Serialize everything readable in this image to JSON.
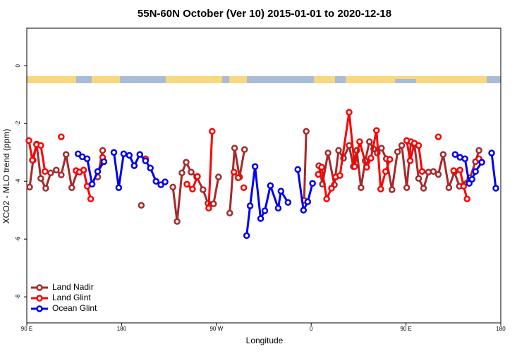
{
  "chart_data": {
    "type": "line",
    "title": "55N-60N October (Ver 10)   2015-01-01 to 2020-12-18",
    "x_label": "Longitude",
    "y_label": "XCO2 - MLO trend (ppm)",
    "xlim": [
      90,
      540
    ],
    "xticks": [
      {
        "value": 90,
        "label": "90 E"
      },
      180,
      {
        "value": 270,
        "label": "90 W"
      },
      {
        "value": 360,
        "label": "0"
      },
      {
        "value": 450,
        "label": "90 E"
      },
      {
        "value": 540,
        "label": "180"
      }
    ],
    "ylim": [
      -8.9,
      1.3
    ],
    "yticks": [
      0,
      -2,
      -4,
      -6,
      -8
    ],
    "legend": "bottom-left",
    "series": [
      {
        "name": "Land Nadir",
        "color": "#a52a2a",
        "x": [
          92.7,
          96.0,
          99.3,
          103.3,
          108.0,
          112.7,
          118.0,
          122.7,
          127.3,
          132.7,
          138.0,
          null,
          157.3,
          162.0,
          null,
          198.7,
          null,
          228.7,
          232.7,
          237.3,
          241.3,
          246.0,
          251.3,
          257.3,
          262.0,
          267.3,
          272.0,
          null,
          282.7,
          287.3,
          292.0,
          296.7,
          null,
          353.3,
          355.3,
          null,
          367.3,
          370.7,
          376.0,
          382.0,
          386.0,
          390.7,
          396.0,
          400.0,
          403.3,
          407.3,
          411.3,
          415.3,
          419.3,
          422.7,
          426.7,
          431.3,
          436.7,
          442.0,
          446.0,
          450.7,
          454.7,
          458.0,
          462.0,
          466.7,
          471.3,
          476.0,
          480.7,
          485.3,
          490.7,
          496.0,
          500.7,
          510.7,
          516.0,
          519.3
        ],
        "values": [
          -4.2,
          -3.27,
          -2.71,
          -3.9,
          -4.24,
          -3.71,
          -3.61,
          -3.78,
          -3.07,
          -4.22,
          -3.66,
          null,
          -3.85,
          -2.93,
          null,
          -4.83,
          null,
          -4.2,
          -5.39,
          -3.71,
          -3.34,
          -3.68,
          -3.85,
          -4.29,
          -4.76,
          -4.78,
          -3.85,
          null,
          -5.1,
          -2.85,
          -3.85,
          -2.9,
          null,
          -4.66,
          -2.27,
          null,
          -3.46,
          -4.1,
          -3.02,
          -4.12,
          -2.93,
          -3.2,
          -2.76,
          -3.49,
          -2.93,
          -4.22,
          -3.29,
          -2.63,
          -2.88,
          -3.02,
          -2.85,
          -3.22,
          -4.29,
          -2.98,
          -2.76,
          -4.22,
          -2.63,
          -2.73,
          -3.9,
          -4.24,
          -3.68,
          -3.66,
          -3.76,
          -3.07,
          -4.22,
          -3.68,
          -4.17,
          -3.88,
          -3.32,
          -2.93
        ]
      },
      {
        "name": "Land Glint",
        "color": "#ff0000",
        "x": [
          92.0,
          95.3,
          99.3,
          103.3,
          107.3,
          null,
          122.7,
          null,
          136.7,
          140.0,
          144.0,
          147.3,
          150.7,
          null,
          162.0,
          null,
          202.7,
          null,
          242.0,
          247.3,
          252.0,
          null,
          262.7,
          266.0,
          null,
          286.7,
          290.7,
          null,
          296.0,
          null,
          366.7,
          370.0,
          374.7,
          379.3,
          383.3,
          387.3,
          396.0,
          401.3,
          406.0,
          412.7,
          416.7,
          422.0,
          426.0,
          430.7,
          434.7,
          null,
          450.7,
          454.0,
          458.0,
          462.0,
          465.3,
          null,
          480.7,
          null,
          495.3,
          501.3,
          504.7,
          508.0,
          null,
          519.3
        ],
        "values": [
          -2.59,
          -3.27,
          -2.73,
          -2.76,
          -3.66,
          null,
          -2.46,
          null,
          -3.63,
          -3.68,
          -3.61,
          -4.17,
          -4.61,
          null,
          -3.17,
          null,
          -3.22,
          null,
          -4.1,
          -4.27,
          -3.83,
          null,
          -4.93,
          -2.27,
          null,
          -3.68,
          -3.88,
          null,
          -4.22,
          null,
          -3.76,
          -3.51,
          -4.61,
          -4.24,
          -3.85,
          -3.8,
          -1.61,
          -3.49,
          -2.63,
          -3.51,
          -3.2,
          -2.24,
          -4.27,
          -3.66,
          -3.24,
          null,
          -2.59,
          -3.29,
          -2.68,
          -2.76,
          -3.66,
          null,
          -2.46,
          null,
          -3.63,
          -3.61,
          -4.17,
          -4.61,
          null,
          -3.22
        ]
      },
      {
        "name": "Ocean Glint",
        "color": "#0000ee",
        "x": [
          138.7,
          142.7,
          147.3,
          152.0,
          157.3,
          163.3,
          null,
          172.7,
          177.3,
          182.0,
          187.3,
          192.0,
          197.3,
          202.7,
          207.3,
          212.7,
          217.3,
          221.3,
          null,
          298.7,
          302.0,
          306.7,
          312.0,
          316.0,
          321.3,
          328.7,
          331.3,
          338.0,
          null,
          347.3,
          352.7,
          356.7,
          361.3,
          null,
          496.7,
          501.3,
          506.0,
          510.0,
          512.7,
          516.0,
          522.0,
          null,
          531.3,
          535.3
        ],
        "values": [
          -3.05,
          -3.15,
          -3.22,
          -4.1,
          -3.66,
          -3.32,
          null,
          -3.0,
          -4.22,
          -3.05,
          -3.1,
          -3.46,
          -3.07,
          -3.29,
          -3.54,
          -4.0,
          -4.12,
          -4.02,
          null,
          -5.88,
          -4.85,
          -3.49,
          -5.29,
          -5.02,
          -4.15,
          -4.93,
          -4.34,
          -4.73,
          null,
          -3.59,
          -5.0,
          -4.71,
          -4.07,
          null,
          -3.07,
          -3.17,
          -3.22,
          -4.07,
          -3.93,
          -3.66,
          -3.34,
          null,
          -3.02,
          -4.24
        ]
      }
    ]
  }
}
